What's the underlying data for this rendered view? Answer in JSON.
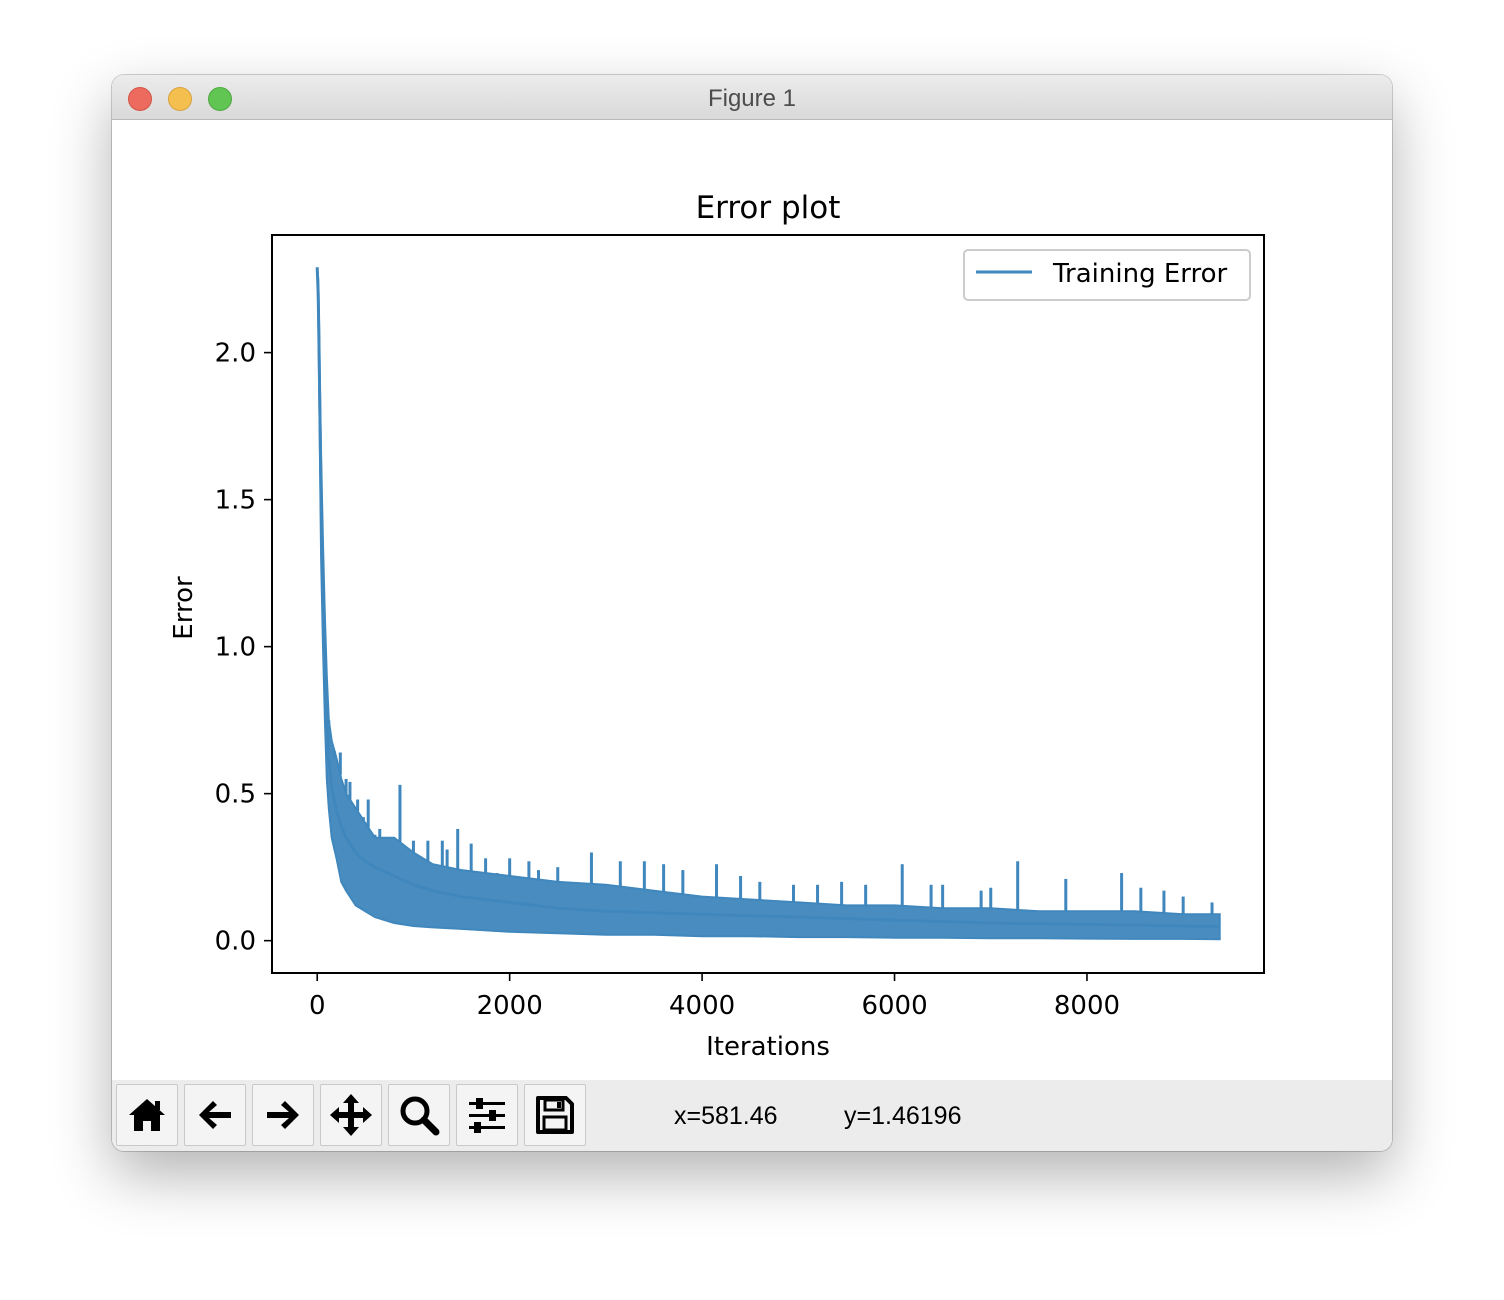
{
  "window": {
    "title": "Figure 1"
  },
  "toolbar": {
    "buttons": [
      {
        "name": "home-button",
        "icon": "home-icon"
      },
      {
        "name": "back-button",
        "icon": "arrow-left-icon"
      },
      {
        "name": "forward-button",
        "icon": "arrow-right-icon"
      },
      {
        "name": "pan-button",
        "icon": "move-icon"
      },
      {
        "name": "zoom-button",
        "icon": "magnifier-icon"
      },
      {
        "name": "configure-subplots-button",
        "icon": "sliders-icon"
      },
      {
        "name": "save-button",
        "icon": "floppy-disk-icon"
      }
    ],
    "coord_x": "x=581.46",
    "coord_y": "y=1.46196"
  },
  "chart_data": {
    "type": "line",
    "title": "Error plot",
    "xlabel": "Iterations",
    "ylabel": "Error",
    "xlim": [
      -470,
      9840
    ],
    "ylim": [
      -0.11,
      2.4
    ],
    "xticks": [
      0,
      2000,
      4000,
      6000,
      8000
    ],
    "xtick_labels": [
      "0",
      "2000",
      "4000",
      "6000",
      "8000"
    ],
    "yticks": [
      0.0,
      0.5,
      1.0,
      1.5,
      2.0
    ],
    "ytick_labels": [
      "0.0",
      "0.5",
      "1.0",
      "1.5",
      "2.0"
    ],
    "grid": false,
    "legend_position": "top-right",
    "color": "#3f87bd",
    "series": [
      {
        "name": "Training Error",
        "x": [
          0,
          10,
          20,
          30,
          40,
          60,
          80,
          100,
          120,
          150,
          200,
          250,
          300,
          400,
          500,
          600,
          800,
          1000,
          1200,
          1500,
          2000,
          2500,
          3000,
          3500,
          4000,
          4500,
          5000,
          5500,
          6000,
          6500,
          7000,
          7500,
          8000,
          8500,
          9000,
          9380
        ],
        "y": [
          2.29,
          2.2,
          2.0,
          1.75,
          1.5,
          1.2,
          0.95,
          0.75,
          0.62,
          0.52,
          0.44,
          0.39,
          0.35,
          0.3,
          0.27,
          0.25,
          0.22,
          0.19,
          0.17,
          0.15,
          0.13,
          0.11,
          0.1,
          0.095,
          0.09,
          0.085,
          0.08,
          0.075,
          0.07,
          0.065,
          0.06,
          0.058,
          0.055,
          0.053,
          0.05,
          0.048
        ],
        "lower": [
          2.29,
          2.15,
          1.9,
          1.6,
          1.3,
          1.0,
          0.75,
          0.55,
          0.45,
          0.35,
          0.28,
          0.2,
          0.17,
          0.12,
          0.1,
          0.08,
          0.06,
          0.05,
          0.045,
          0.04,
          0.03,
          0.025,
          0.02,
          0.02,
          0.015,
          0.015,
          0.012,
          0.012,
          0.01,
          0.01,
          0.008,
          0.008,
          0.007,
          0.006,
          0.006,
          0.005
        ],
        "upper": [
          2.29,
          2.25,
          2.1,
          1.85,
          1.65,
          1.35,
          1.1,
          0.9,
          0.75,
          0.68,
          0.62,
          0.55,
          0.5,
          0.45,
          0.4,
          0.35,
          0.35,
          0.3,
          0.26,
          0.24,
          0.22,
          0.2,
          0.19,
          0.17,
          0.15,
          0.14,
          0.13,
          0.12,
          0.12,
          0.11,
          0.11,
          0.1,
          0.1,
          0.1,
          0.09,
          0.09
        ],
        "spikes": [
          [
            120,
            0.66
          ],
          [
            180,
            0.62
          ],
          [
            240,
            0.64
          ],
          [
            300,
            0.55
          ],
          [
            340,
            0.54
          ],
          [
            420,
            0.48
          ],
          [
            480,
            0.42
          ],
          [
            530,
            0.48
          ],
          [
            600,
            0.36
          ],
          [
            650,
            0.38
          ],
          [
            760,
            0.35
          ],
          [
            860,
            0.53
          ],
          [
            920,
            0.32
          ],
          [
            1000,
            0.34
          ],
          [
            1150,
            0.34
          ],
          [
            1300,
            0.34
          ],
          [
            1350,
            0.31
          ],
          [
            1460,
            0.38
          ],
          [
            1600,
            0.33
          ],
          [
            1750,
            0.28
          ],
          [
            1870,
            0.23
          ],
          [
            2000,
            0.28
          ],
          [
            2200,
            0.27
          ],
          [
            2300,
            0.24
          ],
          [
            2500,
            0.25
          ],
          [
            2850,
            0.3
          ],
          [
            3150,
            0.27
          ],
          [
            3400,
            0.27
          ],
          [
            3600,
            0.26
          ],
          [
            3800,
            0.24
          ],
          [
            4150,
            0.26
          ],
          [
            4400,
            0.22
          ],
          [
            4600,
            0.2
          ],
          [
            4950,
            0.19
          ],
          [
            5200,
            0.19
          ],
          [
            5450,
            0.2
          ],
          [
            5700,
            0.19
          ],
          [
            6080,
            0.26
          ],
          [
            6380,
            0.19
          ],
          [
            6500,
            0.19
          ],
          [
            6900,
            0.17
          ],
          [
            7000,
            0.18
          ],
          [
            7280,
            0.27
          ],
          [
            7780,
            0.21
          ],
          [
            8360,
            0.23
          ],
          [
            8560,
            0.18
          ],
          [
            8800,
            0.17
          ],
          [
            9000,
            0.15
          ],
          [
            9300,
            0.13
          ]
        ]
      }
    ]
  }
}
